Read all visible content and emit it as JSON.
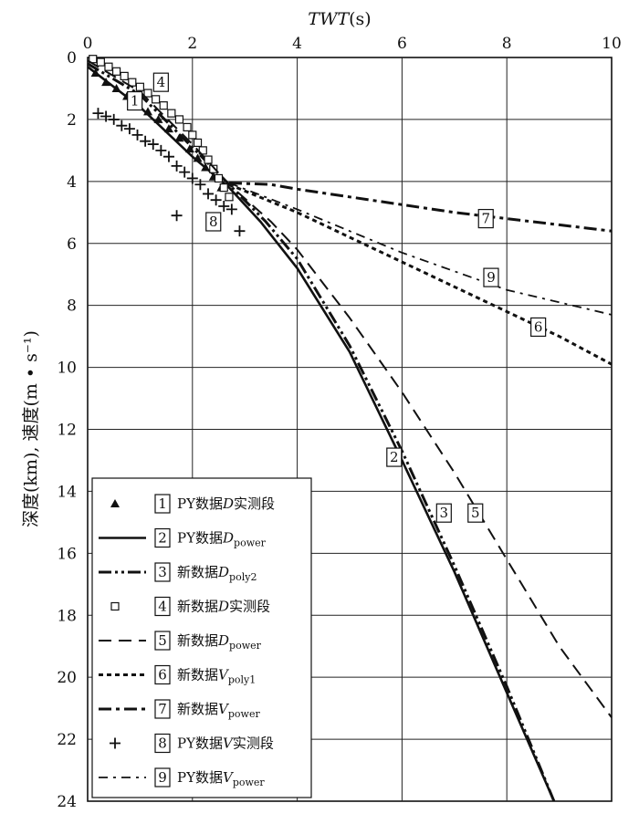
{
  "chart_data": {
    "type": "line",
    "x_title_italic": "TWT",
    "x_title_unit": "(s)",
    "ylabel": "深度(km), 速度(m • s⁻¹)",
    "xlim": [
      0,
      10
    ],
    "ylim": [
      0,
      24
    ],
    "y_inverted": true,
    "x_ticks": [
      "0",
      "2",
      "4",
      "6",
      "8",
      "10"
    ],
    "y_ticks": [
      "0",
      "2",
      "4",
      "6",
      "8",
      "10",
      "12",
      "14",
      "16",
      "18",
      "20",
      "22",
      "24"
    ],
    "grid": true,
    "legend_position": "bottom-left",
    "series": [
      {
        "id": "1",
        "marker": "triangle",
        "legend": {
          "prefix": "PY数据",
          "var": "D",
          "sub": "",
          "suffix": "实测段"
        },
        "x": [
          0.15,
          0.35,
          0.55,
          0.75,
          0.95,
          1.15,
          1.35,
          1.55,
          1.75,
          1.95,
          2.1,
          2.25,
          2.4,
          2.55,
          2.7
        ],
        "y": [
          0.5,
          0.8,
          1.0,
          1.25,
          1.5,
          1.75,
          2.0,
          2.3,
          2.6,
          2.95,
          3.25,
          3.55,
          3.85,
          4.2,
          4.5
        ]
      },
      {
        "id": "2",
        "style": "solid",
        "legend": {
          "prefix": "PY数据",
          "var": "D",
          "sub": "power",
          "suffix": ""
        },
        "x": [
          0,
          1,
          2,
          2.7,
          3.3,
          4,
          5,
          6,
          7,
          8,
          8.9
        ],
        "y": [
          0.3,
          1.6,
          3.2,
          4.2,
          5.3,
          6.8,
          9.5,
          13.0,
          16.6,
          20.5,
          24.0
        ]
      },
      {
        "id": "3",
        "style": "dash-dot-dot",
        "legend": {
          "prefix": "新数据",
          "var": "D",
          "sub": "poly2",
          "suffix": ""
        },
        "x": [
          0,
          1,
          2,
          2.7,
          3.4,
          4,
          5,
          6,
          7,
          8,
          8.9
        ],
        "y": [
          0.2,
          1.2,
          2.9,
          4.1,
          5.3,
          6.5,
          9.3,
          12.7,
          16.4,
          20.3,
          24.0
        ]
      },
      {
        "id": "4",
        "marker": "square",
        "legend": {
          "prefix": "新数据",
          "var": "D",
          "suffix": "实测段"
        },
        "x": [
          0.1,
          0.25,
          0.4,
          0.55,
          0.7,
          0.85,
          1.0,
          1.15,
          1.3,
          1.45,
          1.6,
          1.75,
          1.9,
          2.0,
          2.1,
          2.2,
          2.3,
          2.4,
          2.5,
          2.6,
          2.7
        ],
        "y": [
          0.05,
          0.15,
          0.3,
          0.45,
          0.6,
          0.8,
          0.95,
          1.15,
          1.35,
          1.55,
          1.8,
          2.0,
          2.25,
          2.5,
          2.75,
          3.0,
          3.3,
          3.6,
          3.9,
          4.2,
          4.5
        ]
      },
      {
        "id": "5",
        "style": "long-dash",
        "legend": {
          "prefix": "新数据",
          "var": "D",
          "sub": "power",
          "suffix": ""
        },
        "x": [
          0,
          1,
          2,
          2.7,
          3.5,
          4,
          5,
          6,
          7,
          8,
          9,
          10
        ],
        "y": [
          0.1,
          1.1,
          2.8,
          4.1,
          5.3,
          6.2,
          8.4,
          10.8,
          13.4,
          16.2,
          19.0,
          21.3
        ]
      },
      {
        "id": "6",
        "style": "short-dash",
        "legend": {
          "prefix": "新数据",
          "var": "V",
          "sub": "poly1",
          "suffix": ""
        },
        "x": [
          2.7,
          4,
          5,
          6,
          7,
          8,
          9,
          10
        ],
        "y": [
          4.1,
          5.0,
          5.8,
          6.6,
          7.4,
          8.2,
          9.0,
          9.9
        ]
      },
      {
        "id": "7",
        "style": "dash-dot",
        "legend": {
          "prefix": "新数据",
          "var": "V",
          "sub": "power",
          "suffix": ""
        },
        "x": [
          2.7,
          3.5,
          4,
          5,
          6,
          7,
          8,
          9,
          10
        ],
        "y": [
          4.05,
          4.1,
          4.25,
          4.5,
          4.75,
          5.0,
          5.2,
          5.4,
          5.6
        ]
      },
      {
        "id": "8",
        "marker": "plus",
        "legend": {
          "prefix": "PY数据",
          "var": "V",
          "sub": "",
          "suffix": "实测段"
        },
        "x": [
          0.2,
          0.35,
          0.5,
          0.65,
          0.8,
          0.95,
          1.1,
          1.25,
          1.4,
          1.55,
          1.7,
          1.85,
          2.0,
          2.15,
          2.3,
          2.45,
          2.6,
          2.75,
          1.7,
          2.9
        ],
        "y": [
          1.8,
          1.9,
          2.0,
          2.2,
          2.3,
          2.5,
          2.7,
          2.8,
          3.0,
          3.2,
          3.5,
          3.7,
          3.9,
          4.1,
          4.4,
          4.6,
          4.8,
          4.9,
          5.1,
          5.6
        ]
      },
      {
        "id": "9",
        "style": "dash-dot-sparse",
        "legend": {
          "prefix": "PY数据",
          "var": "V",
          "sub": "power",
          "suffix": ""
        },
        "x": [
          2.7,
          4,
          5,
          6,
          7,
          8,
          9,
          10
        ],
        "y": [
          4.05,
          4.9,
          5.6,
          6.3,
          6.9,
          7.5,
          7.9,
          8.3
        ]
      }
    ],
    "curve_labels": [
      {
        "id": "1",
        "x": 0.9,
        "y": 1.4
      },
      {
        "id": "4",
        "x": 1.4,
        "y": 0.8
      },
      {
        "id": "8",
        "x": 2.4,
        "y": 5.3
      },
      {
        "id": "7",
        "x": 7.6,
        "y": 5.2
      },
      {
        "id": "9",
        "x": 7.7,
        "y": 7.1
      },
      {
        "id": "6",
        "x": 8.6,
        "y": 8.7
      },
      {
        "id": "2",
        "x": 5.85,
        "y": 12.9
      },
      {
        "id": "3",
        "x": 6.8,
        "y": 14.7
      },
      {
        "id": "5",
        "x": 7.4,
        "y": 14.7
      }
    ]
  }
}
